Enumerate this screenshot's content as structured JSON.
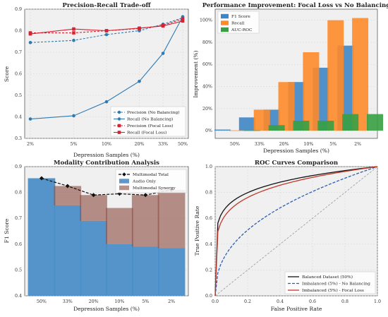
{
  "chart_data": [
    {
      "type": "line",
      "title": "Precision-Recall Trade-off",
      "xlabel": "Depression Samples (%)",
      "ylabel": "Score",
      "x": [
        2,
        5,
        10,
        20,
        33,
        50
      ],
      "x_tick_labels": [
        "2%",
        "5%",
        "10%",
        "20%",
        "33%",
        "50%"
      ],
      "ylim": [
        0.3,
        0.9
      ],
      "y_ticks": [
        "0.3",
        "0.4",
        "0.5",
        "0.6",
        "0.7",
        "0.8",
        "0.9"
      ],
      "grid": true,
      "legend_position": "lower-right",
      "colors": {
        "blue": "#2e7ab3",
        "red": "#d62232"
      },
      "series": [
        {
          "name": "Precision (No Balancing)",
          "values": [
            0.745,
            0.755,
            0.782,
            0.8,
            0.83,
            0.86
          ],
          "color": "#2e7ab3",
          "dashed": true,
          "marker": "circle"
        },
        {
          "name": "Recall (No Balancing)",
          "values": [
            0.39,
            0.405,
            0.47,
            0.565,
            0.695,
            0.865
          ],
          "color": "#2e7ab3",
          "dashed": false,
          "marker": "circle"
        },
        {
          "name": "Precision (Focal Loss)",
          "values": [
            0.79,
            0.79,
            0.8,
            0.81,
            0.825,
            0.855
          ],
          "color": "#d62232",
          "dashed": true,
          "marker": "square"
        },
        {
          "name": "Recall (Focal Loss)",
          "values": [
            0.785,
            0.808,
            0.8,
            0.812,
            0.822,
            0.845
          ],
          "color": "#d62232",
          "dashed": false,
          "marker": "square"
        }
      ]
    },
    {
      "type": "bar",
      "title": "Performance Improvement: Focal Loss vs No Balancing",
      "xlabel": "Depression Samples (%)",
      "ylabel": "Improvement (%)",
      "categories": [
        "50%",
        "33%",
        "20%",
        "10%",
        "5%",
        "2%"
      ],
      "y_ticks": [
        "0%",
        "20%",
        "40%",
        "60%",
        "80%",
        "100%"
      ],
      "ylim": [
        -7,
        110
      ],
      "grid": true,
      "legend_position": "top-left",
      "series": [
        {
          "name": "F1 Score",
          "values": [
            1,
            12,
            19,
            44,
            57,
            77
          ],
          "color": "#3f86c4"
        },
        {
          "name": "Recall",
          "values": [
            0,
            19,
            44,
            71,
            100,
            102
          ],
          "color": "#fe8a2a"
        },
        {
          "name": "AUC-ROC",
          "values": [
            0,
            5,
            9,
            9,
            15,
            15
          ],
          "color": "#37a042"
        }
      ]
    },
    {
      "type": "bar",
      "title": "Modality Contribution Analysis",
      "xlabel": "Depression Samples (%)",
      "ylabel": "F1 Score",
      "categories": [
        "50%",
        "33%",
        "20%",
        "10%",
        "5%",
        "2%"
      ],
      "y_ticks": [
        "0.4",
        "0.5",
        "0.6",
        "0.7",
        "0.8",
        "0.9"
      ],
      "ylim": [
        0.4,
        0.9
      ],
      "grid": true,
      "legend_position": "top-right",
      "series": [
        {
          "name": "Multimodal Total",
          "values": [
            0.855,
            0.825,
            0.79,
            0.795,
            0.79,
            0.81
          ],
          "color": "#111111",
          "kind": "line"
        },
        {
          "name": "Audio Only",
          "values": [
            0.855,
            0.75,
            0.69,
            0.6,
            0.59,
            0.585
          ],
          "color": "#3f86c4",
          "kind": "bar"
        },
        {
          "name": "Multimodal Synergy",
          "values": [
            0.0,
            0.075,
            0.1,
            0.14,
            0.2,
            0.225
          ],
          "color": "#8b4a3f",
          "kind": "stacked"
        }
      ]
    },
    {
      "type": "line",
      "title": "ROC Curves Comparison",
      "xlabel": "False Positive Rate",
      "ylabel": "True Positive Rate",
      "x_ticks": [
        "0.0",
        "0.2",
        "0.4",
        "0.6",
        "0.8",
        "1.0"
      ],
      "y_ticks": [
        "0.0",
        "0.2",
        "0.4",
        "0.6",
        "0.8",
        "1.0"
      ],
      "xlim": [
        0,
        1
      ],
      "ylim": [
        0,
        1
      ],
      "grid": true,
      "legend_position": "lower-right",
      "series": [
        {
          "name": "Balanced Dataset (50%)",
          "color": "#111111",
          "dashed": false,
          "shape_exponent": 0.14
        },
        {
          "name": "Imbalanced (5%) - No Balancing",
          "color": "#2e5fb0",
          "dashed": true,
          "shape_exponent": 0.42
        },
        {
          "name": "Imbalanced (5%) - Focal Loss",
          "color": "#c0392b",
          "dashed": false,
          "shape_exponent": 0.17
        }
      ]
    }
  ]
}
